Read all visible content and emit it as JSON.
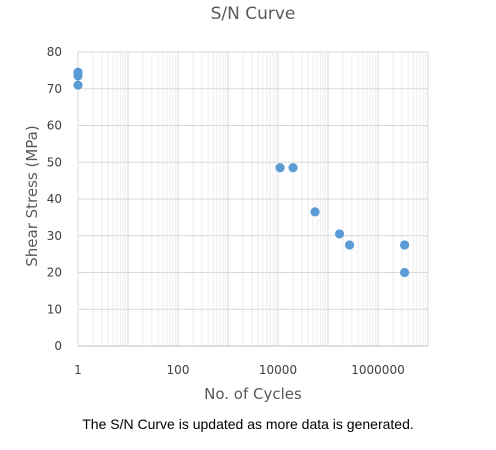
{
  "chart_data": {
    "type": "scatter",
    "title": "S/N Curve",
    "xlabel": "No. of Cycles",
    "ylabel": "Shear Stress  (MPa)",
    "xscale": "log",
    "xlim": [
      1,
      10000000
    ],
    "ylim": [
      0,
      80
    ],
    "xticks": [
      1,
      100,
      10000,
      1000000
    ],
    "xtick_labels": [
      "1",
      "100",
      "10000",
      "1000000"
    ],
    "yticks": [
      0,
      10,
      20,
      30,
      40,
      50,
      60,
      70,
      80
    ],
    "grid": true,
    "legend": "none",
    "marker_color": "#5B9BD5",
    "series": [
      {
        "x": [
          1,
          1,
          1,
          11000,
          20000,
          55000,
          170000,
          270000,
          3400000,
          3400000
        ],
        "y": [
          74.5,
          73.5,
          71,
          48.5,
          48.5,
          36.5,
          30.5,
          27.5,
          27.5,
          20
        ]
      }
    ]
  },
  "caption": "The S/N Curve is updated as more data is generated."
}
